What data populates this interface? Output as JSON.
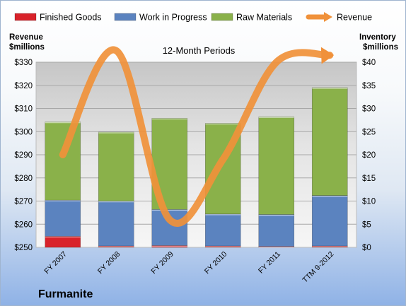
{
  "company": "Furmanite",
  "chart_data": {
    "type": "bar",
    "subtitle": "12-Month Periods",
    "categories": [
      "FY 2007",
      "FY 2008",
      "FY 2009",
      "FY 2010",
      "FY 2011",
      "TTM 9-2012"
    ],
    "series": [
      {
        "name": "Finished Goods",
        "axis": "right",
        "stack": "inventory",
        "color": "#d8222a",
        "values": [
          2.4,
          0.3,
          0.4,
          0.3,
          0.2,
          0.3
        ]
      },
      {
        "name": "Work in Progress",
        "axis": "right",
        "stack": "inventory",
        "color": "#5b83bf",
        "values": [
          7.8,
          9.7,
          7.8,
          6.9,
          6.9,
          10.9
        ]
      },
      {
        "name": "Raw Materials",
        "axis": "right",
        "stack": "inventory",
        "color": "#8ab14a",
        "values": [
          16.9,
          14.9,
          19.7,
          19.6,
          21.1,
          23.3
        ]
      },
      {
        "name": "Revenue",
        "axis": "left",
        "type": "line",
        "color": "#f0913a",
        "values": [
          290,
          335,
          262,
          288,
          330,
          333
        ]
      }
    ],
    "y_left": {
      "label": "Revenue\n$millions",
      "min": 250,
      "max": 330,
      "step": 10,
      "ticks": [
        "$250",
        "$260",
        "$270",
        "$280",
        "$290",
        "$300",
        "$310",
        "$320",
        "$330"
      ]
    },
    "y_right": {
      "label": "Inventory\n$millions",
      "min": 0,
      "max": 40,
      "step": 5,
      "ticks": [
        "$0",
        "$5",
        "$10",
        "$15",
        "$20",
        "$25",
        "$30",
        "$35",
        "$40"
      ]
    },
    "grid": true,
    "legend": "top"
  }
}
